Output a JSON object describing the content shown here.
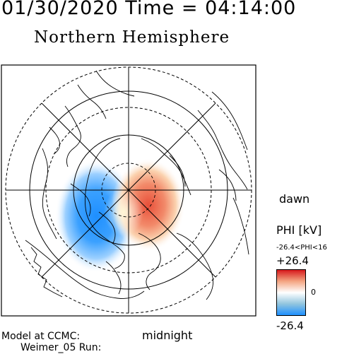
{
  "header": {
    "timestamp": "01/30/2020 Time = 04:14:00",
    "hemisphere": "Northern Hemisphere"
  },
  "map": {
    "projection": "polar-stereographic",
    "pole": "north-magnetic",
    "outer_latitude_deg": 50,
    "latitude_circles_deg": [
      80,
      70,
      60
    ],
    "meridian_spacing_deg": 45,
    "layers": [
      "coastlines",
      "potential-pattern"
    ]
  },
  "labels": {
    "dawn": "dawn",
    "midnight": "midnight",
    "model": "Model at CCMC:",
    "run": "Weimer_05 Run:"
  },
  "colorbar": {
    "title": "PHI [kV]",
    "range_text": "-26.4<PHI<16",
    "max_label": "+26.4",
    "zero_label": "0",
    "min_label": "-26.4",
    "max_value": 26.4,
    "min_value": -26.4,
    "pattern_max_value": 16,
    "colors": [
      "#d7191c",
      "#f4a582",
      "#ffffff",
      "#92c5de",
      "#1e90ff"
    ]
  }
}
